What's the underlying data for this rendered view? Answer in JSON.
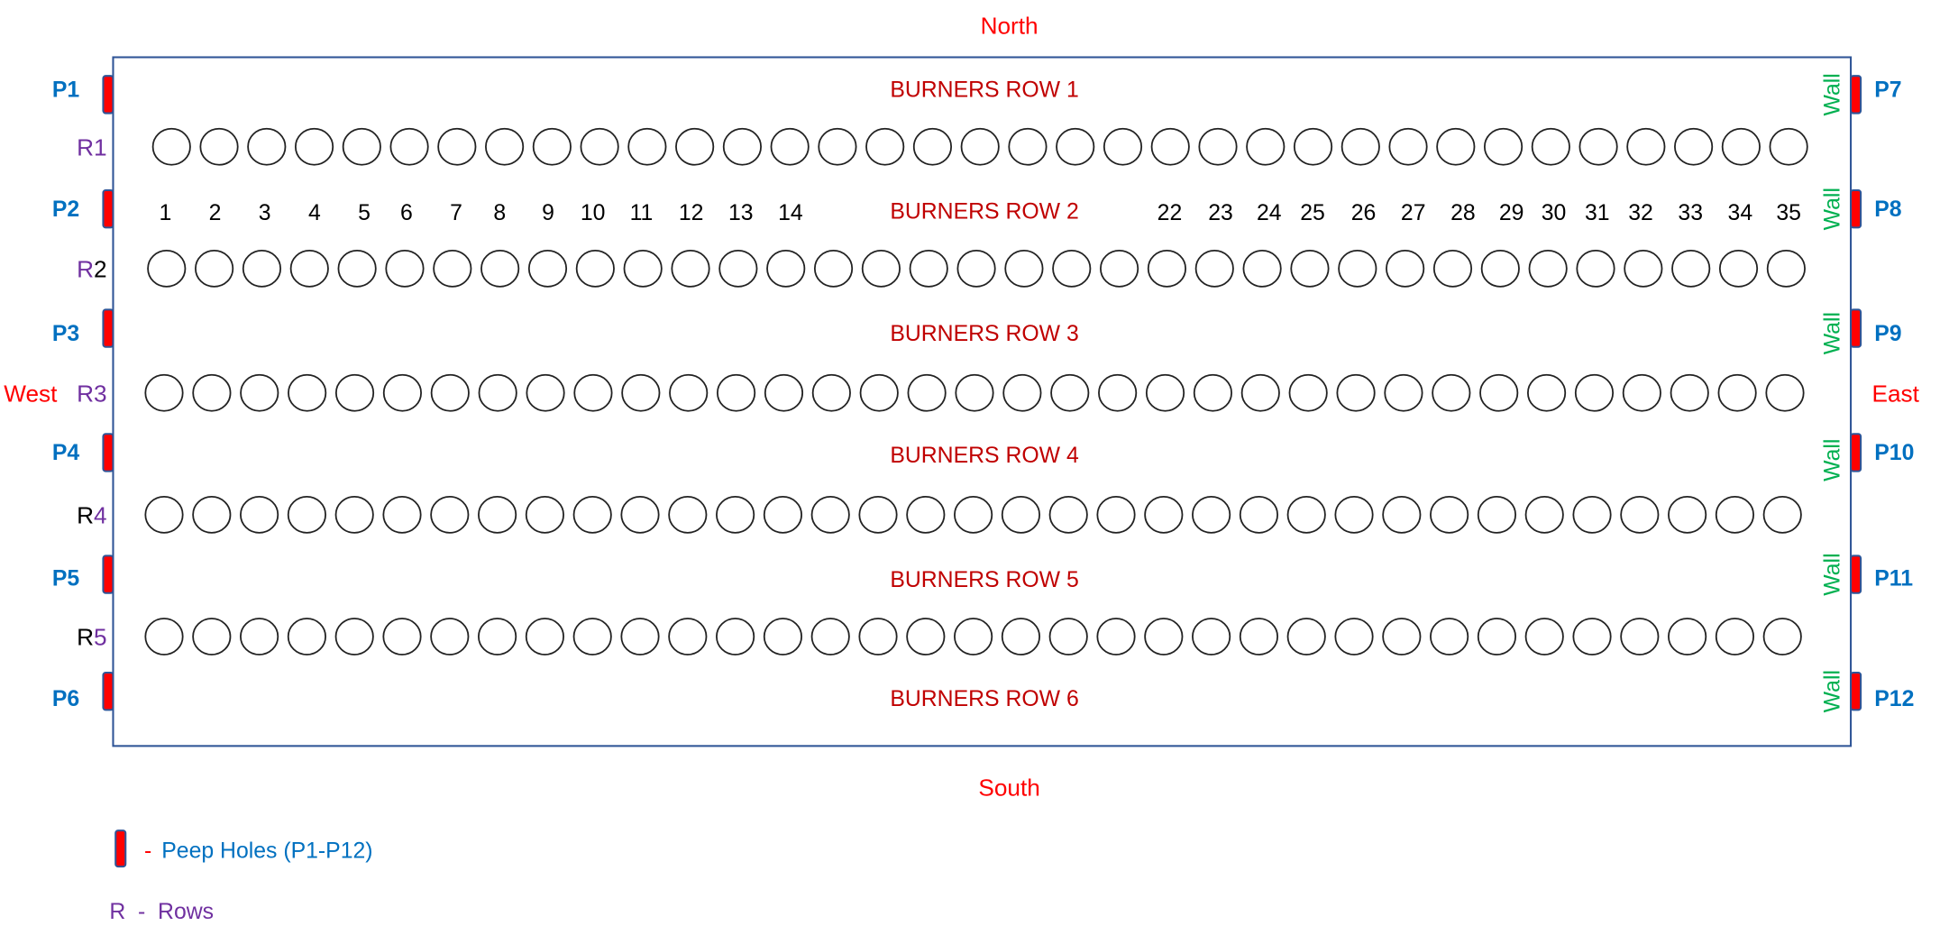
{
  "directions": {
    "north": "North",
    "south": "South",
    "west": "West",
    "east": "East"
  },
  "burner_rows": [
    "BURNERS ROW 1",
    "BURNERS ROW 2",
    "BURNERS ROW 3",
    "BURNERS ROW 4",
    "BURNERS ROW 5",
    "BURNERS ROW 6"
  ],
  "peep_left": [
    "P1",
    "P2",
    "P3",
    "P4",
    "P5",
    "P6"
  ],
  "peep_right": [
    "P7",
    "P8",
    "P9",
    "P10",
    "P11",
    "P12"
  ],
  "wall_label": "Wall",
  "rows": [
    {
      "r": "R",
      "n": "1"
    },
    {
      "r": "R",
      "n": "2"
    },
    {
      "r": "R",
      "n": "3"
    },
    {
      "r": "R",
      "n": "4"
    },
    {
      "r": "R",
      "n": "5"
    }
  ],
  "burner_numbers_left": [
    "1",
    "2",
    "3",
    "4",
    "5",
    "6",
    "7",
    "8",
    "9",
    "10",
    "11",
    "12",
    "13",
    "14"
  ],
  "burner_numbers_right": [
    "22",
    "23",
    "24",
    "25",
    "26",
    "27",
    "28",
    "29",
    "30",
    "31",
    "32",
    "33",
    "34",
    "35"
  ],
  "burners_per_row": 35,
  "legend": {
    "peep_dash": "-",
    "peep_text": "Peep Holes (P1-P12)",
    "rows_text": "R  -  Rows"
  },
  "colors": {
    "box": "#2f5597",
    "peep": "#ff0000",
    "wall": "#00b050",
    "label_blue": "#0070c0",
    "burner_label": "#c00000",
    "row_purple": "#7030a0"
  }
}
